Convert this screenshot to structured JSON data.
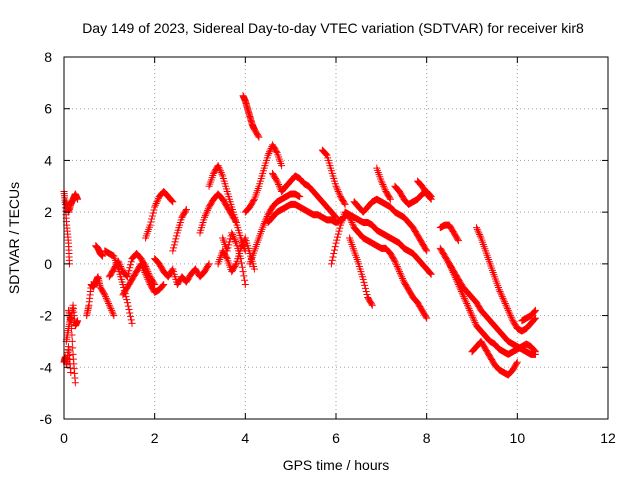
{
  "chart_data": {
    "type": "scatter",
    "title": "Day 149 of 2023, Sidereal Day-to-day VTEC variation (SDTVAR) for receiver kir8",
    "xlabel": "GPS time / hours",
    "ylabel": "SDTVAR / TECUs",
    "xlim": [
      0,
      12
    ],
    "ylim": [
      -6,
      8
    ],
    "x_ticks": [
      0,
      2,
      4,
      6,
      8,
      10,
      12
    ],
    "y_ticks": [
      -6,
      -4,
      -2,
      0,
      2,
      4,
      6,
      8
    ],
    "x_tick_labels": [
      "0",
      "2",
      "4",
      "6",
      "8",
      "10",
      "12"
    ],
    "y_tick_labels": [
      "-6",
      "-4",
      "-2",
      "0",
      "2",
      "4",
      "6",
      "8"
    ],
    "grid": true,
    "marker": "plus",
    "color": "#ff0000",
    "series": [
      {
        "name": "s1",
        "x": [
          0.0,
          0.03,
          0.06,
          0.1,
          0.12
        ],
        "y": [
          2.8,
          2.3,
          1.5,
          0.8,
          0.0
        ]
      },
      {
        "name": "s2",
        "x": [
          0.0,
          0.03,
          0.06,
          0.1,
          0.15
        ],
        "y": [
          -3.8,
          -3.6,
          -3.9,
          -3.2,
          -4.2
        ]
      },
      {
        "name": "s3",
        "x": [
          0.05,
          0.1,
          0.15,
          0.2,
          0.25
        ],
        "y": [
          -3.0,
          -2.5,
          -2.0,
          -3.5,
          -4.6
        ]
      },
      {
        "name": "s4",
        "x": [
          0.1,
          0.15,
          0.2,
          0.25,
          0.3
        ],
        "y": [
          -1.8,
          -2.2,
          -1.6,
          -2.4,
          -2.2
        ]
      },
      {
        "name": "s5",
        "x": [
          0.05,
          0.1,
          0.15,
          0.2,
          0.25,
          0.3
        ],
        "y": [
          2.4,
          2.0,
          2.3,
          2.5,
          2.7,
          2.5
        ]
      },
      {
        "name": "s6",
        "x": [
          0.5,
          0.55,
          0.6,
          0.65,
          0.7,
          0.75,
          0.8,
          0.9,
          1.0,
          1.1
        ],
        "y": [
          -2.0,
          -1.6,
          -0.8,
          -0.9,
          -0.7,
          -0.5,
          -0.9,
          -1.2,
          -1.6,
          -2.0
        ]
      },
      {
        "name": "s7",
        "x": [
          0.7,
          0.75,
          0.8,
          0.85
        ],
        "y": [
          0.7,
          0.6,
          0.4,
          0.3
        ]
      },
      {
        "name": "s8",
        "x": [
          0.9,
          1.0,
          1.1,
          1.2,
          1.3,
          1.4,
          1.5
        ],
        "y": [
          0.5,
          0.4,
          0.3,
          -0.2,
          -0.8,
          -1.5,
          -2.3
        ]
      },
      {
        "name": "s9",
        "x": [
          1.0,
          1.1,
          1.2,
          1.3,
          1.4,
          1.5,
          1.6,
          1.7,
          1.8,
          1.9,
          2.0
        ],
        "y": [
          -0.5,
          -0.2,
          0.1,
          -0.3,
          -0.5,
          0.2,
          0.4,
          0.2,
          -0.1,
          -0.5,
          -0.8
        ]
      },
      {
        "name": "s10",
        "x": [
          1.3,
          1.4,
          1.5,
          1.6,
          1.7,
          1.8,
          1.9,
          2.0,
          2.1,
          2.2
        ],
        "y": [
          -1.2,
          -0.9,
          -0.6,
          -0.3,
          0.0,
          -0.4,
          -0.8,
          -1.1,
          -1.0,
          -0.8
        ]
      },
      {
        "name": "s11",
        "x": [
          1.8,
          1.9,
          2.0,
          2.1,
          2.2,
          2.3,
          2.4
        ],
        "y": [
          1.0,
          1.5,
          2.2,
          2.6,
          2.8,
          2.6,
          2.4
        ]
      },
      {
        "name": "s12",
        "x": [
          2.0,
          2.1,
          2.2,
          2.3,
          2.4,
          2.5,
          2.6,
          2.7,
          2.8,
          2.9,
          3.0,
          3.1,
          3.2
        ],
        "y": [
          0.2,
          0.0,
          -0.3,
          -0.5,
          -0.2,
          -0.8,
          -0.5,
          -0.7,
          -0.4,
          -0.2,
          -0.5,
          -0.3,
          0.0
        ]
      },
      {
        "name": "s13",
        "x": [
          2.4,
          2.5,
          2.6,
          2.7
        ],
        "y": [
          0.5,
          1.2,
          1.8,
          2.1
        ]
      },
      {
        "name": "s14",
        "x": [
          3.0,
          3.1,
          3.2,
          3.3,
          3.4,
          3.5,
          3.6,
          3.7,
          3.8
        ],
        "y": [
          1.2,
          1.8,
          2.2,
          2.5,
          2.7,
          2.5,
          2.2,
          1.9,
          1.6
        ]
      },
      {
        "name": "s15",
        "x": [
          3.2,
          3.3,
          3.4,
          3.5,
          3.6,
          3.7,
          3.8,
          3.9,
          4.0
        ],
        "y": [
          3.0,
          3.5,
          3.8,
          3.4,
          2.8,
          2.2,
          1.6,
          1.0,
          0.5
        ]
      },
      {
        "name": "s16",
        "x": [
          3.4,
          3.5,
          3.6,
          3.7,
          3.8,
          3.9,
          4.0,
          4.1,
          4.2
        ],
        "y": [
          0.0,
          0.5,
          0.2,
          -0.3,
          0.0,
          0.6,
          1.0,
          0.4,
          -0.2
        ]
      },
      {
        "name": "s17",
        "x": [
          3.5,
          3.6,
          3.7,
          3.8,
          3.9,
          4.0
        ],
        "y": [
          1.0,
          0.5,
          1.2,
          0.8,
          0.2,
          -0.8
        ]
      },
      {
        "name": "s18",
        "x": [
          3.95,
          4.0,
          4.05,
          4.1,
          4.15,
          4.2,
          4.3
        ],
        "y": [
          6.5,
          6.3,
          6.0,
          5.7,
          5.4,
          5.2,
          4.9
        ]
      },
      {
        "name": "s19",
        "x": [
          4.0,
          4.1,
          4.2,
          4.3,
          4.4,
          4.5,
          4.6,
          4.7,
          4.8
        ],
        "y": [
          2.0,
          2.2,
          2.5,
          3.0,
          3.6,
          4.2,
          4.6,
          4.3,
          3.8
        ]
      },
      {
        "name": "s20",
        "x": [
          4.1,
          4.2,
          4.3,
          4.4,
          4.5,
          4.6,
          4.7,
          4.8,
          4.9,
          5.0,
          5.1,
          5.2
        ],
        "y": [
          0.0,
          0.5,
          1.0,
          1.5,
          1.9,
          2.2,
          2.4,
          2.5,
          2.6,
          2.7,
          2.7,
          2.6
        ]
      },
      {
        "name": "s21",
        "x": [
          4.6,
          4.7,
          4.8,
          4.9,
          5.0,
          5.1,
          5.2,
          5.3,
          5.4,
          5.5,
          5.6,
          5.7,
          5.8,
          5.9,
          6.0
        ],
        "y": [
          3.5,
          3.2,
          2.8,
          3.0,
          3.2,
          3.4,
          3.3,
          3.1,
          3.0,
          2.8,
          2.6,
          2.4,
          2.2,
          2.0,
          1.8
        ]
      },
      {
        "name": "s22",
        "x": [
          4.5,
          4.6,
          4.7,
          4.8,
          4.9,
          5.0,
          5.1,
          5.2,
          5.3,
          5.4,
          5.5,
          5.6,
          5.7,
          5.8,
          5.9,
          6.0,
          6.1,
          6.2
        ],
        "y": [
          1.6,
          1.8,
          2.0,
          2.1,
          2.2,
          2.3,
          2.3,
          2.2,
          2.1,
          2.0,
          1.9,
          1.9,
          1.8,
          1.7,
          1.7,
          1.6,
          1.7,
          1.8
        ]
      },
      {
        "name": "s23",
        "x": [
          5.7,
          5.8,
          5.9,
          6.0,
          6.1,
          6.2
        ],
        "y": [
          4.4,
          4.2,
          3.6,
          3.0,
          2.6,
          2.3
        ]
      },
      {
        "name": "s24",
        "x": [
          5.9,
          6.0,
          6.1,
          6.2,
          6.3,
          6.4,
          6.5,
          6.6,
          6.7,
          6.8,
          6.9,
          7.0,
          7.1,
          7.2,
          7.3,
          7.4,
          7.5,
          7.6,
          7.7,
          7.8,
          7.9,
          8.0
        ],
        "y": [
          0.0,
          0.8,
          1.5,
          2.0,
          1.8,
          1.4,
          1.2,
          1.0,
          0.9,
          0.8,
          0.7,
          0.6,
          0.6,
          0.4,
          0.1,
          -0.3,
          -0.7,
          -1.0,
          -1.3,
          -1.5,
          -1.8,
          -2.1
        ]
      },
      {
        "name": "s25",
        "x": [
          6.2,
          6.3,
          6.4,
          6.5,
          6.6,
          6.7,
          6.8,
          6.9,
          7.0,
          7.1,
          7.2,
          7.3,
          7.4,
          7.5,
          7.6,
          7.7,
          7.8,
          7.9,
          8.0,
          8.1
        ],
        "y": [
          2.0,
          1.9,
          1.8,
          1.7,
          1.6,
          1.6,
          1.5,
          1.3,
          1.2,
          1.1,
          1.0,
          0.9,
          0.8,
          0.6,
          0.5,
          0.4,
          0.2,
          0.0,
          -0.2,
          -0.4
        ]
      },
      {
        "name": "s26",
        "x": [
          6.4,
          6.5,
          6.6,
          6.7,
          6.8,
          6.9,
          7.0,
          7.1,
          7.2,
          7.3,
          7.4,
          7.5,
          7.6,
          7.7,
          7.8,
          7.9,
          8.0
        ],
        "y": [
          2.4,
          2.2,
          2.0,
          2.2,
          2.4,
          2.5,
          2.4,
          2.3,
          2.2,
          2.0,
          1.9,
          1.8,
          1.6,
          1.4,
          1.1,
          0.8,
          0.5
        ]
      },
      {
        "name": "s27",
        "x": [
          6.3,
          6.4,
          6.5,
          6.6,
          6.7,
          6.8
        ],
        "y": [
          1.0,
          0.5,
          0.0,
          -0.6,
          -1.3,
          -1.6
        ]
      },
      {
        "name": "s28",
        "x": [
          6.9,
          7.0,
          7.1,
          7.2
        ],
        "y": [
          3.7,
          3.2,
          2.8,
          2.5
        ]
      },
      {
        "name": "s29",
        "x": [
          7.3,
          7.4,
          7.5,
          7.6,
          7.7,
          7.8,
          7.9,
          8.0,
          8.1
        ],
        "y": [
          3.0,
          2.8,
          2.5,
          2.3,
          2.4,
          2.5,
          2.7,
          2.8,
          2.6
        ]
      },
      {
        "name": "s30",
        "x": [
          7.8,
          7.9,
          8.0,
          8.1
        ],
        "y": [
          3.2,
          3.0,
          2.7,
          2.5
        ]
      },
      {
        "name": "s31",
        "x": [
          8.3,
          8.4,
          8.5,
          8.6,
          8.7
        ],
        "y": [
          1.4,
          1.5,
          1.5,
          1.2,
          0.9
        ]
      },
      {
        "name": "s32",
        "x": [
          8.3,
          8.4,
          8.5,
          8.6,
          8.7,
          8.8,
          8.9,
          9.0,
          9.1,
          9.2,
          9.3,
          9.4,
          9.5,
          9.6,
          9.7,
          9.8,
          9.9,
          10.0,
          10.1,
          10.2,
          10.3,
          10.4
        ],
        "y": [
          0.6,
          0.3,
          0.0,
          -0.3,
          -0.6,
          -0.9,
          -1.1,
          -1.3,
          -1.5,
          -1.8,
          -2.0,
          -2.2,
          -2.4,
          -2.6,
          -2.8,
          -3.0,
          -3.1,
          -3.2,
          -3.3,
          -3.4,
          -3.5,
          -3.5
        ]
      },
      {
        "name": "s33",
        "x": [
          8.5,
          8.6,
          8.7,
          8.8,
          8.9,
          9.0,
          9.1,
          9.2,
          9.3,
          9.4,
          9.5,
          9.6,
          9.7,
          9.8,
          9.9,
          10.0,
          10.1,
          10.2,
          10.3,
          10.4
        ],
        "y": [
          0.0,
          -0.4,
          -0.8,
          -1.2,
          -1.6,
          -2.0,
          -2.4,
          -2.6,
          -2.8,
          -3.0,
          -3.1,
          -3.3,
          -3.4,
          -3.5,
          -3.4,
          -3.3,
          -3.2,
          -3.1,
          -3.2,
          -3.4
        ]
      },
      {
        "name": "s34",
        "x": [
          9.0,
          9.1,
          9.2,
          9.3,
          9.4,
          9.5,
          9.6,
          9.7,
          9.8,
          9.9,
          10.0
        ],
        "y": [
          -3.4,
          -3.2,
          -3.0,
          -3.3,
          -3.6,
          -3.9,
          -4.1,
          -4.2,
          -4.3,
          -4.1,
          -3.8
        ]
      },
      {
        "name": "s35",
        "x": [
          9.1,
          9.2,
          9.3,
          9.4,
          9.5,
          9.6,
          9.7,
          9.8,
          9.9,
          10.0,
          10.1,
          10.2,
          10.3,
          10.4
        ],
        "y": [
          1.4,
          1.0,
          0.5,
          0.0,
          -0.5,
          -1.0,
          -1.4,
          -1.8,
          -2.2,
          -2.5,
          -2.6,
          -2.5,
          -2.3,
          -2.1
        ]
      },
      {
        "name": "s36",
        "x": [
          10.1,
          10.2,
          10.3,
          10.4
        ],
        "y": [
          -2.2,
          -2.1,
          -2.0,
          -1.8
        ]
      }
    ]
  }
}
